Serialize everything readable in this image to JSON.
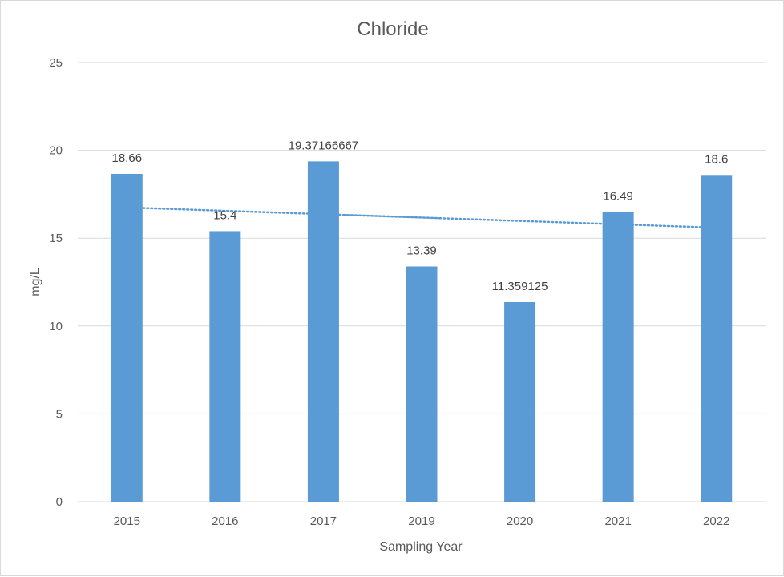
{
  "chart_data": {
    "type": "bar",
    "title": "Chloride",
    "xlabel": "Sampling Year",
    "ylabel": "mg/L",
    "categories": [
      "2015",
      "2016",
      "2017",
      "2019",
      "2020",
      "2021",
      "2022"
    ],
    "values": [
      18.66,
      15.4,
      19.37166667,
      13.39,
      11.359125,
      16.49,
      18.6
    ],
    "data_labels": [
      "18.66",
      "15.4",
      "19.37166667",
      "13.39",
      "11.359125",
      "16.49",
      "18.6"
    ],
    "ylim": [
      0,
      25
    ],
    "yticks": [
      "0",
      "5",
      "10",
      "15",
      "20",
      "25"
    ],
    "grid": true,
    "legend": "none",
    "trendline": {
      "type": "linear",
      "style": "dotted",
      "start_value": 16.75,
      "end_value": 15.6
    },
    "colors": {
      "bar": "#5b9bd5",
      "trendline": "#5b9bd5",
      "grid": "#d9d9d9",
      "text": "#595959"
    }
  }
}
